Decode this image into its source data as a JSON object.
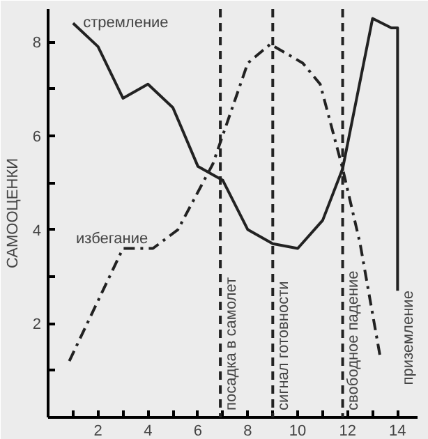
{
  "chart_data": {
    "type": "line",
    "ylabel": "САМООЦЕНКИ",
    "xlim": [
      0,
      14.8
    ],
    "ylim": [
      0,
      8.7
    ],
    "xticks": [
      {
        "value": 1,
        "label": null
      },
      2,
      {
        "value": 3,
        "label": null
      },
      4,
      {
        "value": 5,
        "label": null
      },
      6,
      {
        "value": 7,
        "label": null
      },
      8,
      {
        "value": 9,
        "label": null
      },
      10,
      {
        "value": 11,
        "label": null
      },
      12,
      {
        "value": 13,
        "label": null
      },
      14
    ],
    "yticks": [
      {
        "value": 1,
        "label": null
      },
      2,
      {
        "value": 3,
        "label": null
      },
      4,
      {
        "value": 5,
        "label": null
      },
      6,
      {
        "value": 7,
        "label": null
      },
      8
    ],
    "grid": false,
    "marker": "none",
    "series": [
      {
        "name": "стремление",
        "color": "#222222",
        "line_style": "solid",
        "x": [
          1,
          2,
          3,
          4,
          5,
          6,
          7,
          8,
          9,
          10,
          11,
          11.8,
          13,
          13.75,
          14,
          14
        ],
        "values": [
          8.4,
          7.9,
          6.8,
          7.1,
          6.6,
          5.35,
          5.05,
          4.0,
          3.7,
          3.6,
          4.2,
          5.3,
          8.5,
          8.3,
          8.3,
          2.7
        ]
      },
      {
        "name": "избегание",
        "color": "#222222",
        "line_style": "dashed_dotted",
        "x": [
          0.85,
          3,
          4.2,
          5.2,
          6.6,
          8,
          8.9,
          10.2,
          10.9,
          11.8,
          12.5,
          13.3
        ],
        "values": [
          1.2,
          3.6,
          3.6,
          4.0,
          5.4,
          7.55,
          7.95,
          7.55,
          7.1,
          5.3,
          3.7,
          1.3
        ]
      }
    ],
    "ref_lines": [
      {
        "axis": "x",
        "value": 6.9,
        "label": "посадка в самолет",
        "line_style": "dashed"
      },
      {
        "axis": "x",
        "value": 9.0,
        "label": "сигнал готовности",
        "line_style": "dashed"
      },
      {
        "axis": "x",
        "value": 11.8,
        "label": "свободное падение",
        "line_style": "dashed"
      }
    ],
    "annotations": [
      {
        "text": "приземление",
        "x": 14,
        "y": 2.7
      }
    ]
  }
}
